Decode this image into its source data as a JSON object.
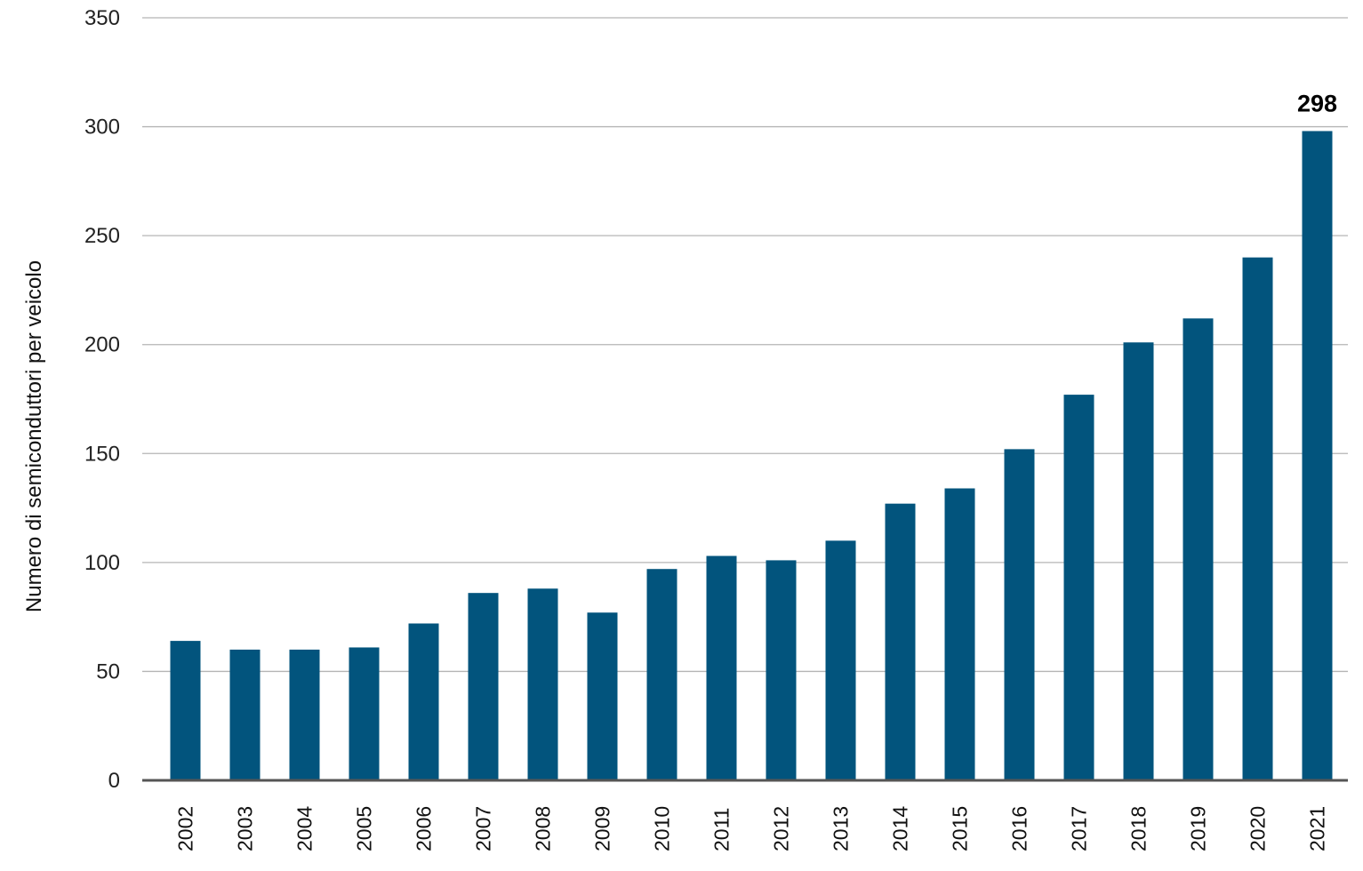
{
  "chart_data": {
    "type": "bar",
    "title": "",
    "xlabel": "",
    "ylabel": "Numero di semiconduttori per veicolo",
    "categories": [
      "2002",
      "2003",
      "2004",
      "2005",
      "2006",
      "2007",
      "2008",
      "2009",
      "2010",
      "2011",
      "2012",
      "2013",
      "2014",
      "2015",
      "2016",
      "2017",
      "2018",
      "2019",
      "2020",
      "2021"
    ],
    "series": [
      {
        "values": [
          64,
          60,
          60,
          61,
          72,
          86,
          88,
          77,
          97,
          103,
          101,
          110,
          127,
          134,
          152,
          177,
          201,
          212,
          240,
          298
        ]
      }
    ],
    "ylim": [
      0,
      350
    ],
    "yticks": [
      0,
      50,
      100,
      150,
      200,
      250,
      300,
      350
    ],
    "grid": true,
    "legend": "none",
    "data_labels": [
      {
        "category": "2021",
        "text": "298"
      }
    ],
    "colors": {
      "bar": "#02547D",
      "grid": "#B5B5B5",
      "axis": "#555555"
    }
  }
}
